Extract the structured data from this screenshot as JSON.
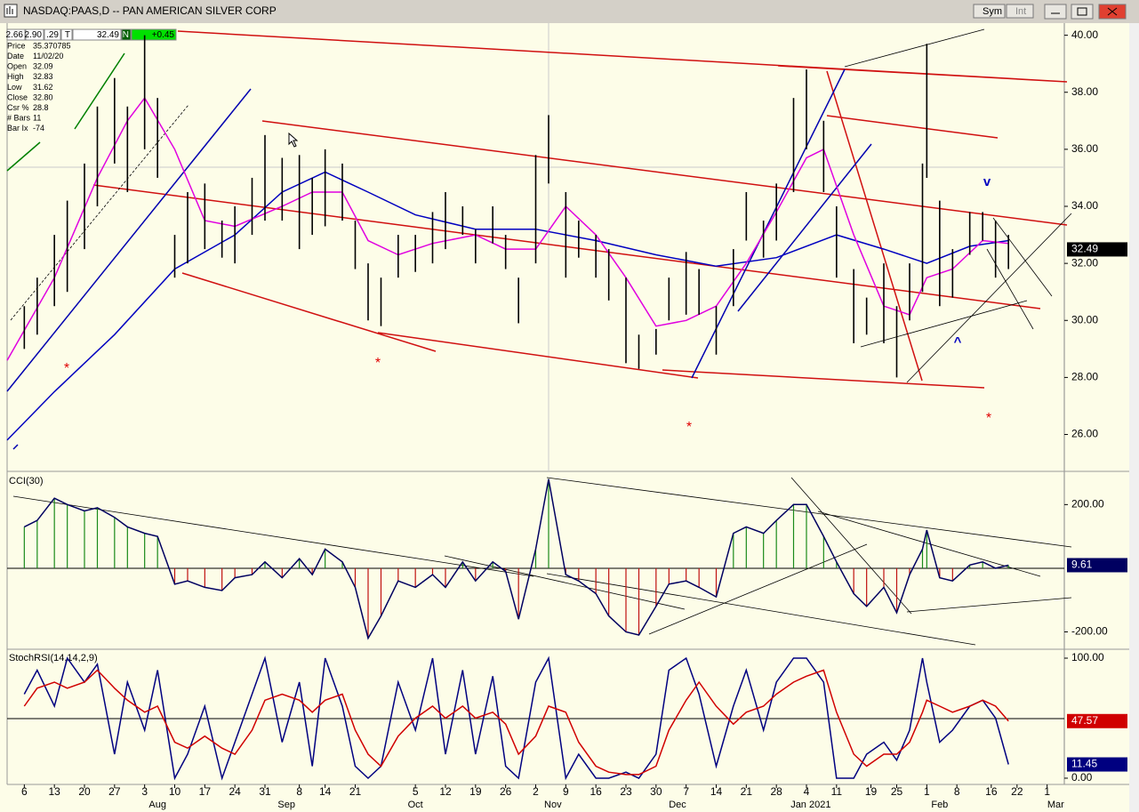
{
  "header": {
    "title": "NASDAQ:PAAS,D -- PAN AMERICAN SILVER CORP",
    "buttons": [
      "Sym",
      "Int"
    ],
    "strip": [
      "2.66",
      "2.90",
      ".29",
      "T",
      "32.49",
      "N",
      "+0.45"
    ]
  },
  "info_panel": [
    [
      "Price",
      "35.370785"
    ],
    [
      "Date",
      "11/02/20"
    ],
    [
      "Open",
      "32.09"
    ],
    [
      "High",
      "32.83"
    ],
    [
      "Low",
      "31.62"
    ],
    [
      "Close",
      "32.80"
    ],
    [
      "Csr %",
      "28.8"
    ],
    [
      "# Bars",
      "11"
    ],
    [
      "Bar Ix",
      "-74"
    ]
  ],
  "annotations": [
    "v",
    "^"
  ],
  "chart_data": [
    {
      "type": "ohlc",
      "xlim": [
        -4,
        242
      ],
      "xticks": [
        {
          "value": 0,
          "label": "6"
        },
        {
          "value": 7,
          "label": "13"
        },
        {
          "value": 14,
          "label": "20"
        },
        {
          "value": 21,
          "label": "27"
        },
        {
          "value": 28,
          "label": "3"
        },
        {
          "value": 35,
          "label": "10"
        },
        {
          "value": 42,
          "label": "17"
        },
        {
          "value": 49,
          "label": "24"
        },
        {
          "value": 56,
          "label": "31"
        },
        {
          "value": 64,
          "label": "8"
        },
        {
          "value": 70,
          "label": "14"
        },
        {
          "value": 77,
          "label": "21"
        },
        {
          "value": 91,
          "label": "5"
        },
        {
          "value": 98,
          "label": "12"
        },
        {
          "value": 105,
          "label": "19"
        },
        {
          "value": 112,
          "label": "26"
        },
        {
          "value": 119,
          "label": "2"
        },
        {
          "value": 126,
          "label": "9"
        },
        {
          "value": 133,
          "label": "16"
        },
        {
          "value": 140,
          "label": "23"
        },
        {
          "value": 147,
          "label": "30"
        },
        {
          "value": 154,
          "label": "7"
        },
        {
          "value": 161,
          "label": "14"
        },
        {
          "value": 168,
          "label": "21"
        },
        {
          "value": 175,
          "label": "28"
        },
        {
          "value": 182,
          "label": "4"
        },
        {
          "value": 189,
          "label": "11"
        },
        {
          "value": 197,
          "label": "19"
        },
        {
          "value": 203,
          "label": "25"
        },
        {
          "value": 210,
          "label": "1"
        },
        {
          "value": 217,
          "label": "8"
        },
        {
          "value": 225,
          "label": "16"
        },
        {
          "value": 231,
          "label": "22"
        },
        {
          "value": 238,
          "label": "1"
        }
      ],
      "month_ticks": [
        {
          "value": 31,
          "label": "Aug"
        },
        {
          "value": 61,
          "label": "Sep"
        },
        {
          "value": 91,
          "label": "Oct"
        },
        {
          "value": 123,
          "label": "Nov"
        },
        {
          "value": 152,
          "label": "Dec"
        },
        {
          "value": 183,
          "label": "Jan 2021"
        },
        {
          "value": 213,
          "label": "Feb"
        },
        {
          "value": 240,
          "label": "Mar"
        }
      ],
      "ylim": [
        24.8,
        40.3
      ],
      "yticks": [
        {
          "value": 40,
          "label": "40.00"
        },
        {
          "value": 38,
          "label": "38.00"
        },
        {
          "value": 36,
          "label": "36.00"
        },
        {
          "value": 34,
          "label": "34.00"
        },
        {
          "value": 32,
          "label": "32.00"
        },
        {
          "value": 30,
          "label": "30.00"
        },
        {
          "value": 28,
          "label": "28.00"
        },
        {
          "value": 26,
          "label": "26.00"
        }
      ],
      "color": "#000000",
      "x": [
        0,
        3,
        7,
        10,
        14,
        17,
        21,
        24,
        28,
        31,
        35,
        38,
        42,
        46,
        49,
        53,
        56,
        60,
        64,
        67,
        70,
        74,
        77,
        80,
        83,
        87,
        91,
        95,
        98,
        102,
        105,
        109,
        112,
        115,
        119,
        122,
        126,
        129,
        133,
        136,
        140,
        143,
        147,
        150,
        154,
        157,
        161,
        165,
        168,
        172,
        175,
        179,
        182,
        186,
        189,
        193,
        196,
        200,
        203,
        206,
        209,
        210,
        213,
        216,
        220,
        223,
        226,
        229
      ],
      "high": [
        30.5,
        31.5,
        33.0,
        34.2,
        35.5,
        37.5,
        38.5,
        37.5,
        40.0,
        37.8,
        33.0,
        34.5,
        34.8,
        33.5,
        34.0,
        35.0,
        36.5,
        35.7,
        35.8,
        35.0,
        36.0,
        35.5,
        33.5,
        32.0,
        31.5,
        33.0,
        33.0,
        33.8,
        34.5,
        34.0,
        33.2,
        34.0,
        33.0,
        31.5,
        35.8,
        37.2,
        34.5,
        33.5,
        33.0,
        32.5,
        31.5,
        29.5,
        29.7,
        31.5,
        32.4,
        31.8,
        30.5,
        32.5,
        34.5,
        33.5,
        34.8,
        37.8,
        38.8,
        37.0,
        34.0,
        31.8,
        30.8,
        32.0,
        30.5,
        32.0,
        35.5,
        39.7,
        34.2,
        32.5,
        33.8,
        33.8,
        33.5,
        33.0
      ],
      "low": [
        29.0,
        29.5,
        30.5,
        31.0,
        32.5,
        34.0,
        35.5,
        34.5,
        36.0,
        35.0,
        31.5,
        32.0,
        32.5,
        32.2,
        32.0,
        33.0,
        33.5,
        33.5,
        32.5,
        33.0,
        33.3,
        33.5,
        31.8,
        30.0,
        29.8,
        31.5,
        31.7,
        32.0,
        32.5,
        33.0,
        32.0,
        32.7,
        31.8,
        29.9,
        32.0,
        34.8,
        31.5,
        32.2,
        31.5,
        30.7,
        28.5,
        28.3,
        28.8,
        30.0,
        30.2,
        30.2,
        28.8,
        30.5,
        32.8,
        32.2,
        32.8,
        34.5,
        36.0,
        34.5,
        31.5,
        29.2,
        29.5,
        29.2,
        28.0,
        30.0,
        31.0,
        35.0,
        30.5,
        30.8,
        32.3,
        32.8,
        31.5,
        31.8
      ],
      "last_price": 32.49,
      "series": [
        {
          "color": "#0000c0",
          "x": [
            -4,
            7,
            21,
            35,
            49,
            60,
            70,
            80,
            91,
            105,
            119,
            133,
            147,
            161,
            175,
            189,
            200,
            210,
            220,
            229
          ],
          "values": [
            25.8,
            27.5,
            29.5,
            31.8,
            33.0,
            34.5,
            35.2,
            34.5,
            33.7,
            33.2,
            33.2,
            32.8,
            32.3,
            31.9,
            32.2,
            33.0,
            32.5,
            32.0,
            32.6,
            32.8
          ]
        },
        {
          "color": "#e000e0",
          "x": [
            -4,
            7,
            17,
            24,
            28,
            35,
            42,
            49,
            60,
            67,
            74,
            80,
            87,
            95,
            105,
            112,
            119,
            126,
            133,
            140,
            147,
            154,
            161,
            168,
            175,
            182,
            186,
            193,
            200,
            206,
            210,
            216,
            223,
            229
          ],
          "values": [
            28.6,
            31.5,
            35.0,
            37.0,
            37.8,
            36.0,
            33.5,
            33.3,
            34.0,
            34.5,
            34.5,
            32.8,
            32.3,
            32.7,
            33.0,
            32.5,
            32.5,
            34.0,
            33.0,
            31.5,
            29.8,
            30.0,
            30.5,
            32.0,
            33.8,
            35.7,
            36.0,
            33.0,
            30.5,
            30.2,
            31.5,
            31.8,
            32.8,
            32.7
          ]
        }
      ]
    },
    {
      "type": "cci",
      "title": "CCI(30)",
      "color": "#000060",
      "ylim": [
        -249,
        296
      ],
      "yticks": [
        {
          "value": 200,
          "label": "200.00"
        },
        {
          "value": -200,
          "label": "-200.00"
        }
      ],
      "values": [
        130,
        150,
        220,
        200,
        180,
        190,
        160,
        130,
        110,
        100,
        -50,
        -40,
        -60,
        -70,
        -30,
        -20,
        20,
        -30,
        30,
        -20,
        60,
        20,
        -60,
        -220,
        -150,
        -40,
        -60,
        -20,
        -60,
        20,
        -40,
        20,
        -10,
        -160,
        60,
        280,
        -20,
        -40,
        -80,
        -150,
        -200,
        -210,
        -120,
        -50,
        -40,
        -60,
        -90,
        110,
        130,
        110,
        150,
        200,
        200,
        100,
        20,
        -80,
        -120,
        -60,
        -140,
        -20,
        60,
        120,
        -30,
        -40,
        10,
        20,
        0,
        9.61
      ]
    },
    {
      "type": "line",
      "title": "StochRSI(14,14,2,9)",
      "ylim": [
        -5.2,
        105.2
      ],
      "yticks": [
        {
          "value": 100,
          "label": "100.00"
        },
        {
          "value": 0,
          "label": "0.00"
        }
      ],
      "series": [
        {
          "color": "#000080",
          "values": [
            70,
            90,
            60,
            100,
            80,
            95,
            20,
            80,
            40,
            90,
            0,
            20,
            60,
            0,
            30,
            70,
            100,
            30,
            80,
            10,
            100,
            60,
            10,
            0,
            10,
            80,
            40,
            100,
            20,
            90,
            20,
            85,
            10,
            0,
            80,
            100,
            0,
            20,
            0,
            0,
            5,
            0,
            20,
            90,
            100,
            70,
            10,
            60,
            90,
            40,
            80,
            100,
            100,
            80,
            0,
            0,
            20,
            30,
            15,
            40,
            100,
            80,
            30,
            40,
            60,
            65,
            50,
            11.45
          ]
        },
        {
          "color": "#d00000",
          "values": [
            60,
            75,
            80,
            75,
            80,
            90,
            75,
            65,
            55,
            60,
            30,
            25,
            35,
            25,
            20,
            40,
            65,
            70,
            65,
            55,
            65,
            70,
            40,
            20,
            10,
            35,
            50,
            60,
            50,
            60,
            50,
            55,
            45,
            20,
            35,
            60,
            55,
            30,
            10,
            5,
            3,
            3,
            10,
            40,
            65,
            80,
            60,
            45,
            55,
            60,
            70,
            80,
            85,
            90,
            55,
            20,
            10,
            20,
            20,
            30,
            55,
            65,
            60,
            55,
            60,
            65,
            60,
            47.57
          ]
        }
      ]
    }
  ]
}
